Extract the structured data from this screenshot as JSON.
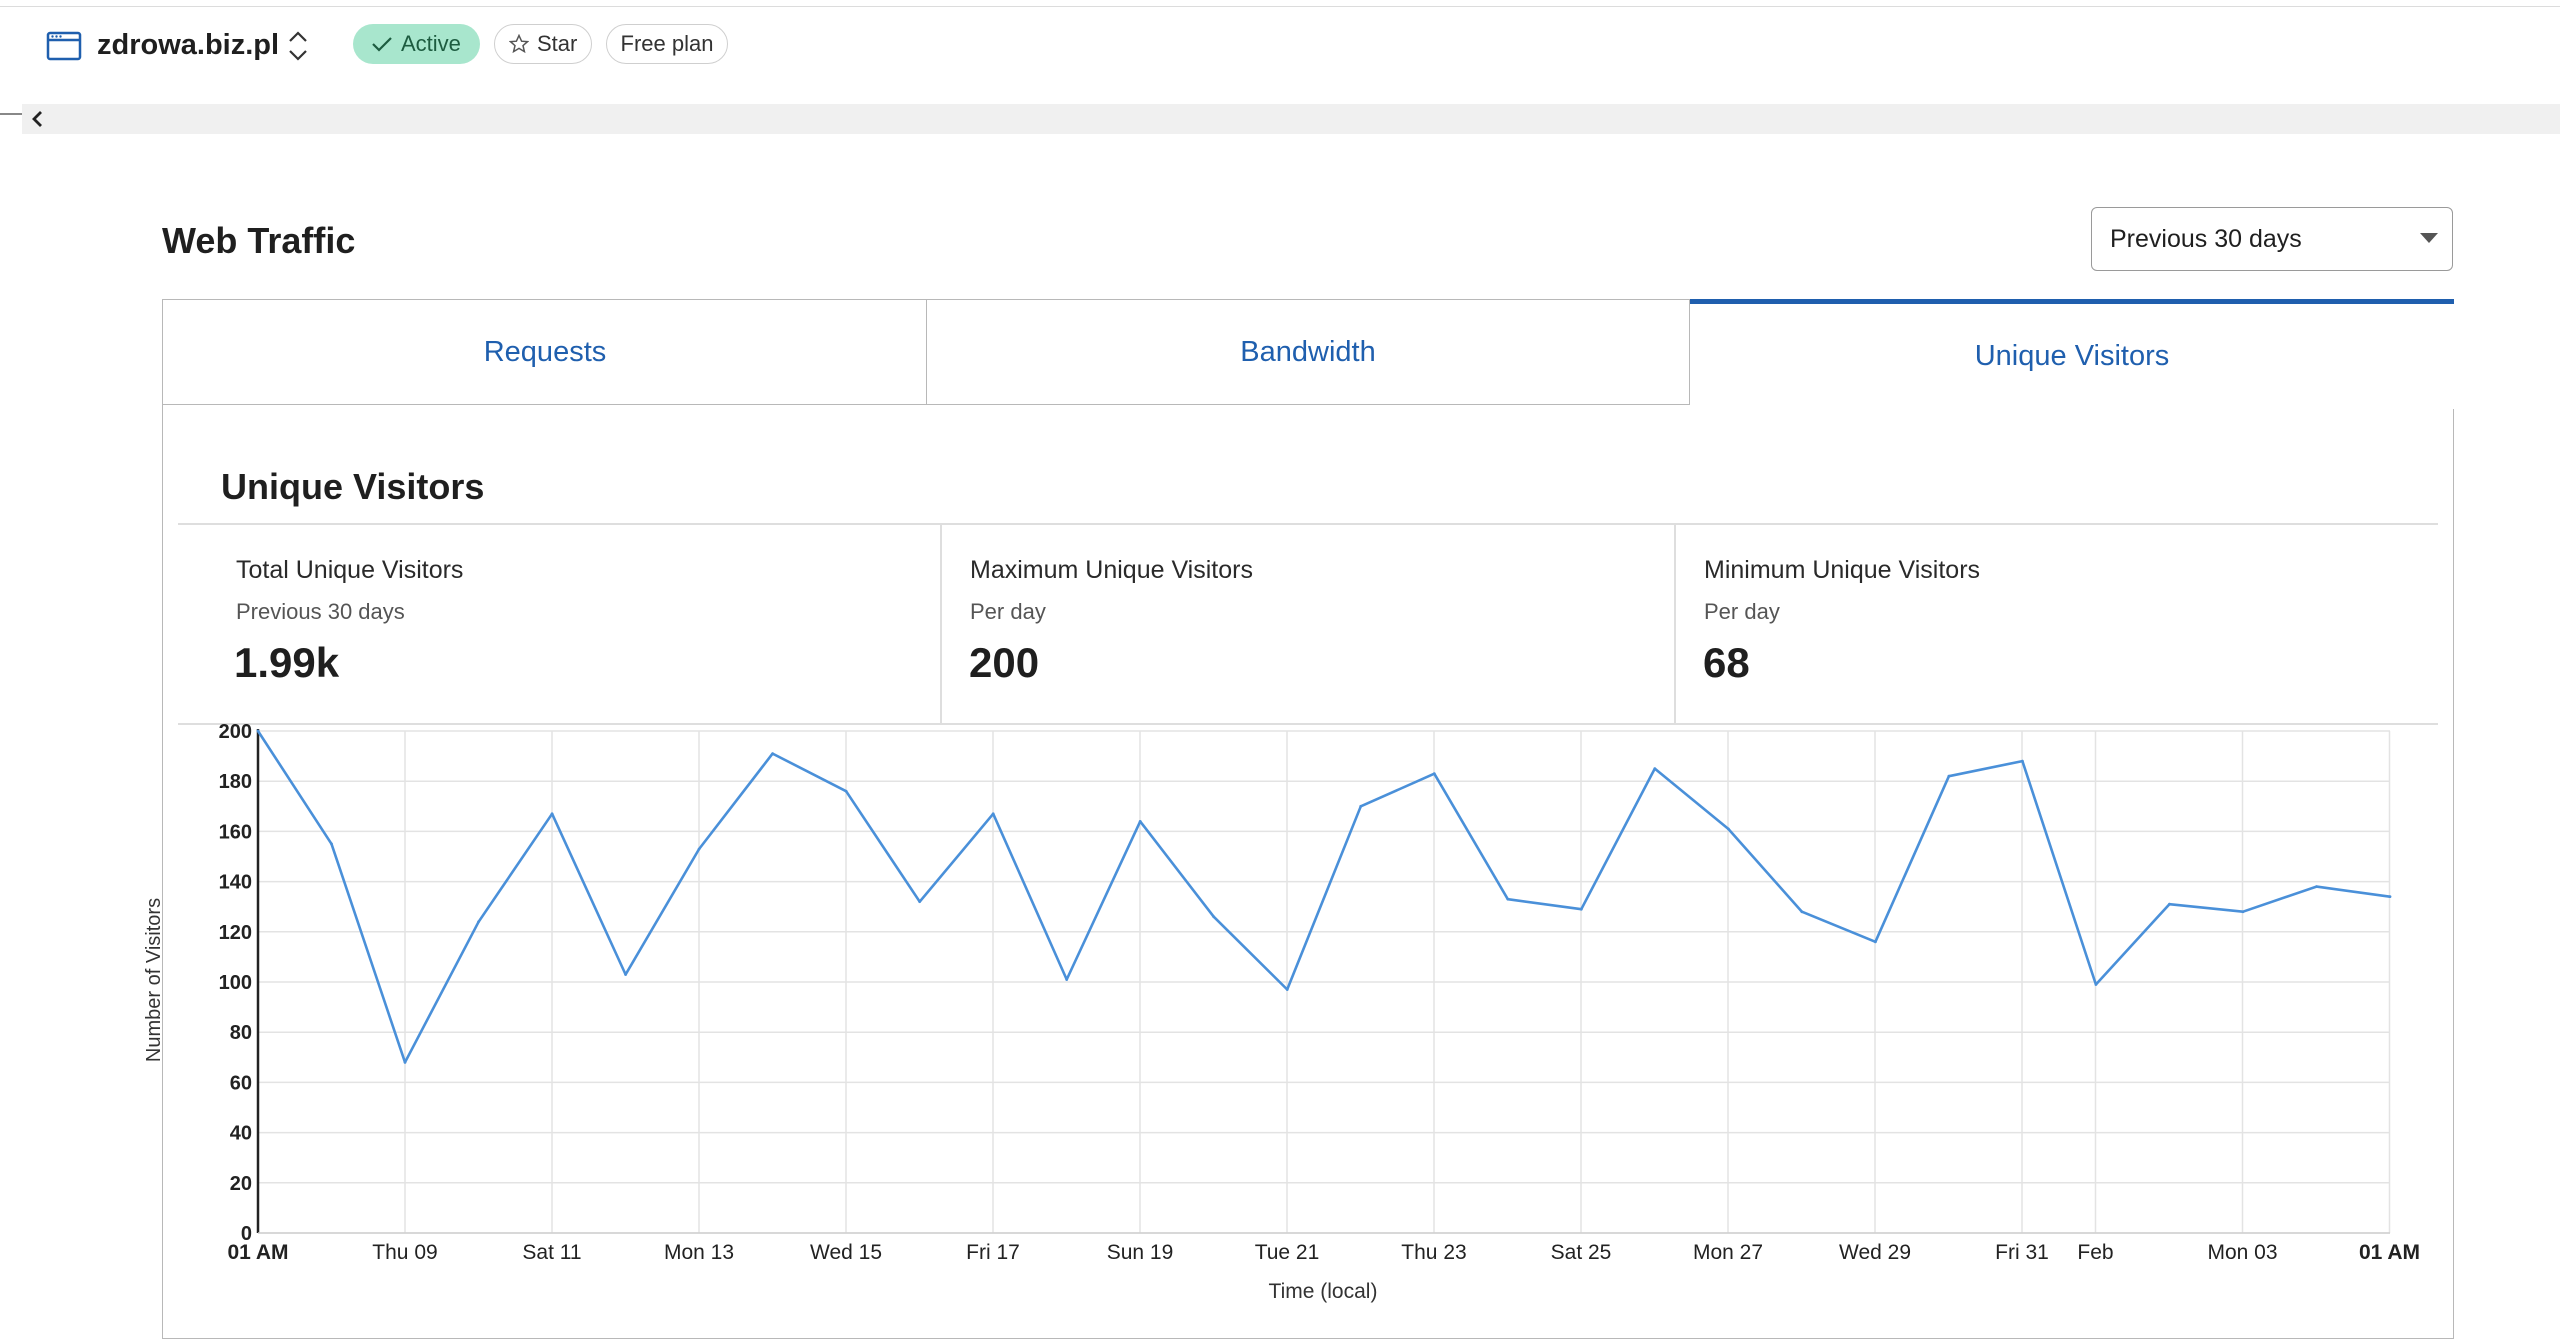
{
  "header": {
    "site_name": "zdrowa.biz.pl",
    "status_label": "Active",
    "star_label": "Star",
    "plan_label": "Free plan"
  },
  "section": {
    "title": "Web Traffic",
    "range_selected": "Previous 30 days"
  },
  "tabs": [
    {
      "label": "Requests",
      "selected": false
    },
    {
      "label": "Bandwidth",
      "selected": false
    },
    {
      "label": "Unique Visitors",
      "selected": true
    }
  ],
  "unique_visitors": {
    "title": "Unique Visitors",
    "stats": [
      {
        "label": "Total Unique Visitors",
        "sub": "Previous 30 days",
        "value": "1.99k"
      },
      {
        "label": "Maximum Unique Visitors",
        "sub": "Per day",
        "value": "200"
      },
      {
        "label": "Minimum Unique Visitors",
        "sub": "Per day",
        "value": "68"
      }
    ]
  },
  "colors": {
    "accent": "#1f5fae",
    "active_badge_bg": "#a8e6cd",
    "line": "#4a90d9"
  },
  "chart_data": {
    "type": "line",
    "xlabel": "Time (local)",
    "ylabel": "Number of Visitors",
    "ylim": [
      0,
      200
    ],
    "yticks": [
      0,
      20,
      40,
      60,
      80,
      100,
      120,
      140,
      160,
      180,
      200
    ],
    "x_tick_labels": [
      "01 AM",
      "Thu 09",
      "Sat 11",
      "Mon 13",
      "Wed 15",
      "Fri 17",
      "Sun 19",
      "Tue 21",
      "Thu 23",
      "Sat 25",
      "Mon 27",
      "Wed 29",
      "Fri 31",
      "Feb",
      "Mon 03",
      "01 AM"
    ],
    "x_tick_days": [
      0,
      2,
      4,
      6,
      8,
      10,
      12,
      14,
      16,
      18,
      20,
      22,
      24,
      25,
      27,
      29
    ],
    "bold_tick_labels": [
      0,
      15
    ],
    "series": [
      {
        "values": [
          200,
          155,
          68,
          124,
          167,
          103,
          153,
          191,
          176,
          132,
          167,
          101,
          164,
          126,
          97,
          170,
          183,
          133,
          129,
          185,
          161,
          128,
          116,
          182,
          188,
          99,
          131,
          128,
          138,
          134
        ]
      }
    ],
    "grid": true
  }
}
